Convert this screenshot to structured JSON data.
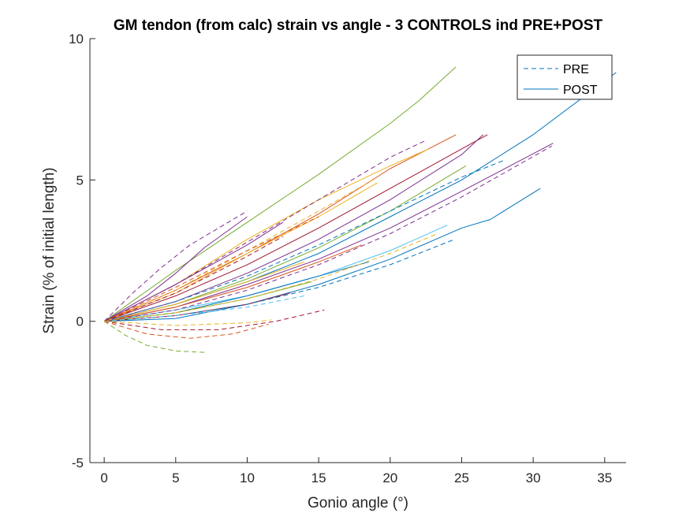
{
  "chart_data": {
    "type": "line",
    "title": "GM tendon (from calc) strain vs angle - 3 CONTROLS ind PRE+POST",
    "xlabel": "Gonio angle (°)",
    "ylabel": "Strain (% of initial length)",
    "xlim": [
      -1,
      36.5
    ],
    "ylim": [
      -5,
      10
    ],
    "xticks": [
      0,
      5,
      10,
      15,
      20,
      25,
      30,
      35
    ],
    "yticks": [
      -5,
      0,
      5,
      10
    ],
    "grid": false,
    "legend": {
      "placement": "top-right",
      "entries": [
        {
          "label": "PRE",
          "style": "dashed"
        },
        {
          "label": "POST",
          "style": "solid"
        }
      ]
    },
    "series": [
      {
        "group": "POST",
        "style": "solid",
        "color": "#77AC30",
        "x": [
          0,
          5,
          10,
          15,
          20,
          22,
          24.6
        ],
        "y": [
          0,
          1.8,
          3.5,
          5.2,
          7.0,
          7.8,
          9.0
        ]
      },
      {
        "group": "POST",
        "style": "solid",
        "color": "#0072BD",
        "x": [
          0,
          5,
          10,
          15,
          20,
          25,
          30,
          35.8
        ],
        "y": [
          0,
          0.6,
          1.4,
          2.4,
          3.7,
          5.0,
          6.6,
          8.8
        ]
      },
      {
        "group": "POST",
        "style": "solid",
        "color": "#0072BD",
        "x": [
          0,
          5,
          10,
          15,
          20,
          25,
          27,
          30.5
        ],
        "y": [
          0,
          0.1,
          0.6,
          1.3,
          2.2,
          3.3,
          3.6,
          4.7
        ]
      },
      {
        "group": "POST",
        "style": "solid",
        "color": "#7E2F8E",
        "x": [
          0,
          5,
          10,
          15,
          20,
          25,
          31.4
        ],
        "y": [
          0,
          0.5,
          1.3,
          2.2,
          3.3,
          4.6,
          6.3
        ]
      },
      {
        "group": "POST",
        "style": "solid",
        "color": "#A2142F",
        "x": [
          0,
          5,
          10,
          15,
          20,
          25,
          26.8
        ],
        "y": [
          0,
          0.9,
          2.0,
          3.3,
          4.7,
          6.1,
          6.6
        ]
      },
      {
        "group": "POST",
        "style": "solid",
        "color": "#D95319",
        "x": [
          0,
          5,
          10,
          15,
          20,
          24.6
        ],
        "y": [
          0,
          1.1,
          2.4,
          3.8,
          5.4,
          6.6
        ]
      },
      {
        "group": "POST",
        "style": "solid",
        "color": "#EDB120",
        "x": [
          0,
          5,
          10,
          15,
          20,
          22.7
        ],
        "y": [
          0,
          1.3,
          2.9,
          4.3,
          5.5,
          6.1
        ]
      },
      {
        "group": "POST",
        "style": "solid",
        "color": "#EDB120",
        "x": [
          0,
          5,
          10,
          15,
          19.1
        ],
        "y": [
          0,
          1.0,
          2.4,
          3.7,
          4.9
        ]
      },
      {
        "group": "POST",
        "style": "solid",
        "color": "#77AC30",
        "x": [
          0,
          5,
          10,
          15,
          20,
          25.3
        ],
        "y": [
          0,
          0.6,
          1.5,
          2.6,
          3.9,
          5.5
        ]
      },
      {
        "group": "POST",
        "style": "solid",
        "color": "#7E2F8E",
        "x": [
          0,
          5,
          10,
          15,
          20,
          25,
          26.5
        ],
        "y": [
          0,
          0.7,
          1.7,
          2.9,
          4.3,
          5.9,
          6.6
        ]
      },
      {
        "group": "POST",
        "style": "solid",
        "color": "#7E2F8E",
        "x": [
          0,
          3,
          5,
          7,
          10
        ],
        "y": [
          0,
          0.9,
          1.7,
          2.6,
          3.7
        ]
      },
      {
        "group": "POST",
        "style": "solid",
        "color": "#7E2F8E",
        "x": [
          0,
          5,
          10,
          12.5
        ],
        "y": [
          0,
          1.3,
          2.7,
          3.5
        ]
      },
      {
        "group": "POST",
        "style": "solid",
        "color": "#4DBEEE",
        "x": [
          0,
          5,
          10,
          15,
          20,
          24
        ],
        "y": [
          0,
          0.4,
          0.9,
          1.6,
          2.5,
          3.4
        ]
      },
      {
        "group": "POST",
        "style": "solid",
        "color": "#D95319",
        "x": [
          0,
          5,
          10,
          15,
          18
        ],
        "y": [
          0,
          0.5,
          1.2,
          2.1,
          2.7
        ]
      },
      {
        "group": "POST",
        "style": "solid",
        "color": "#0072BD",
        "x": [
          0,
          5,
          10,
          15,
          18.5
        ],
        "y": [
          0,
          0.3,
          0.9,
          1.6,
          2.1
        ]
      },
      {
        "group": "POST",
        "style": "solid",
        "color": "#EDB120",
        "x": [
          0,
          5,
          10,
          14
        ],
        "y": [
          0,
          0.6,
          1.4,
          2.1
        ]
      },
      {
        "group": "POST",
        "style": "solid",
        "color": "#77AC30",
        "x": [
          0,
          5,
          10,
          14.5
        ],
        "y": [
          0,
          0.3,
          0.8,
          1.4
        ]
      },
      {
        "group": "POST",
        "style": "solid",
        "color": "#A2142F",
        "x": [
          0,
          5,
          10,
          13
        ],
        "y": [
          0,
          0.2,
          0.6,
          1.0
        ]
      },
      {
        "group": "PRE",
        "style": "dashed",
        "color": "#0072BD",
        "x": [
          0,
          5,
          10,
          15,
          20,
          25,
          28
        ],
        "y": [
          0,
          0.7,
          1.6,
          2.7,
          3.9,
          5.1,
          5.7
        ]
      },
      {
        "group": "PRE",
        "style": "dashed",
        "color": "#7E2F8E",
        "x": [
          0,
          5,
          10,
          15,
          20,
          25,
          31.3
        ],
        "y": [
          0,
          0.4,
          1.1,
          2.0,
          3.1,
          4.4,
          6.2
        ]
      },
      {
        "group": "PRE",
        "style": "dashed",
        "color": "#0072BD",
        "x": [
          0,
          5,
          10,
          15,
          20,
          24.5
        ],
        "y": [
          0,
          0.2,
          0.6,
          1.2,
          2.0,
          2.9
        ]
      },
      {
        "group": "PRE",
        "style": "dashed",
        "color": "#7E2F8E",
        "x": [
          0,
          2,
          4,
          6,
          8,
          10
        ],
        "y": [
          0,
          1.0,
          1.9,
          2.7,
          3.3,
          3.9
        ]
      },
      {
        "group": "PRE",
        "style": "dashed",
        "color": "#7E2F8E",
        "x": [
          0,
          5,
          10,
          15,
          20,
          22.5
        ],
        "y": [
          0,
          1.3,
          2.8,
          4.3,
          5.8,
          6.4
        ]
      },
      {
        "group": "PRE",
        "style": "dashed",
        "color": "#EDB120",
        "x": [
          0,
          5,
          10,
          15,
          18.8
        ],
        "y": [
          0,
          1.1,
          2.5,
          3.9,
          5.0
        ]
      },
      {
        "group": "PRE",
        "style": "dashed",
        "color": "#D95319",
        "x": [
          0,
          5,
          10,
          15
        ],
        "y": [
          0,
          1.2,
          2.5,
          3.7
        ]
      },
      {
        "group": "PRE",
        "style": "dashed",
        "color": "#A2142F",
        "x": [
          0,
          5,
          10,
          12.5
        ],
        "y": [
          0,
          1.0,
          2.3,
          3.0
        ]
      },
      {
        "group": "PRE",
        "style": "dashed",
        "color": "#EDB120",
        "x": [
          0,
          5,
          10,
          15,
          20,
          23.3
        ],
        "y": [
          0,
          0.3,
          0.8,
          1.5,
          2.4,
          3.1
        ]
      },
      {
        "group": "PRE",
        "style": "dashed",
        "color": "#4DBEEE",
        "x": [
          0,
          5,
          10,
          14
        ],
        "y": [
          0,
          0.2,
          0.5,
          0.9
        ]
      },
      {
        "group": "PRE",
        "style": "dashed",
        "color": "#D95319",
        "x": [
          0,
          3,
          6,
          9,
          11.5
        ],
        "y": [
          0,
          -0.45,
          -0.6,
          -0.45,
          -0.1
        ]
      },
      {
        "group": "PRE",
        "style": "dashed",
        "color": "#77AC30",
        "x": [
          0,
          1.5,
          3,
          5,
          7
        ],
        "y": [
          0,
          -0.5,
          -0.85,
          -1.05,
          -1.1
        ]
      },
      {
        "group": "PRE",
        "style": "dashed",
        "color": "#A2142F",
        "x": [
          0,
          4,
          8,
          12,
          15.4
        ],
        "y": [
          0,
          -0.3,
          -0.3,
          0.0,
          0.4
        ]
      },
      {
        "group": "PRE",
        "style": "dashed",
        "color": "#EDB120",
        "x": [
          0,
          5,
          10,
          11.7
        ],
        "y": [
          0,
          -0.15,
          -0.05,
          0.05
        ]
      }
    ]
  }
}
